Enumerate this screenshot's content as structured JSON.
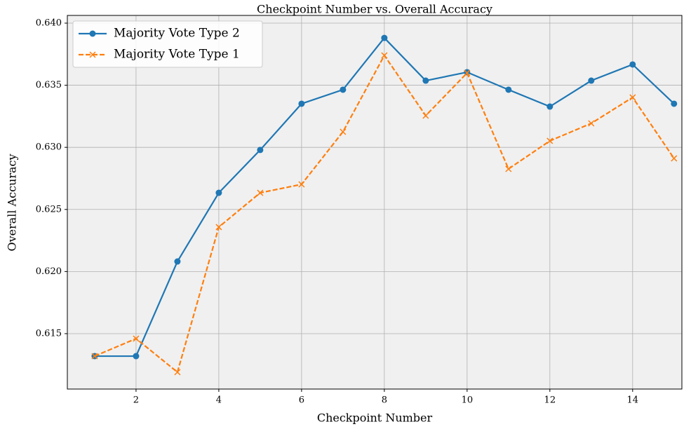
{
  "chart_data": {
    "type": "line",
    "title": "Checkpoint Number vs. Overall Accuracy",
    "x_label": "Checkpoint Number",
    "y_label": "Overall Accuracy",
    "x": [
      1,
      2,
      3,
      4,
      5,
      6,
      7,
      8,
      9,
      10,
      11,
      12,
      13,
      14,
      15
    ],
    "series": [
      {
        "name": "Majority Vote Type 2",
        "color": "#1f77b4",
        "marker": "circle",
        "linestyle": "solid",
        "values": [
          0.61319,
          0.61319,
          0.62081,
          0.62634,
          0.62979,
          0.63351,
          0.63464,
          0.63881,
          0.63537,
          0.63605,
          0.63464,
          0.63328,
          0.63537,
          0.63667,
          0.63351
        ]
      },
      {
        "name": "Majority Vote Type 1",
        "color": "#ff7f0e",
        "marker": "x",
        "linestyle": "dashed",
        "values": [
          0.61319,
          0.6146,
          0.6119,
          0.62358,
          0.62634,
          0.62702,
          0.63125,
          0.6374,
          0.63255,
          0.63599,
          0.62826,
          0.63052,
          0.63193,
          0.63402,
          0.62911
        ]
      }
    ],
    "xlim": [
      0.34,
      15.19
    ],
    "xticks": [
      2,
      4,
      6,
      8,
      10,
      12,
      14
    ],
    "ylim": [
      0.61054,
      0.64062
    ],
    "yticks": [
      0.615,
      {
        "value": 0.62,
        "label": "0.620"
      },
      0.625,
      {
        "value": 0.63,
        "label": "0.630"
      },
      0.635,
      {
        "value": 0.64,
        "label": "0.640"
      }
    ],
    "grid": true,
    "legend": "upper left",
    "background": "#f0f0f0"
  }
}
